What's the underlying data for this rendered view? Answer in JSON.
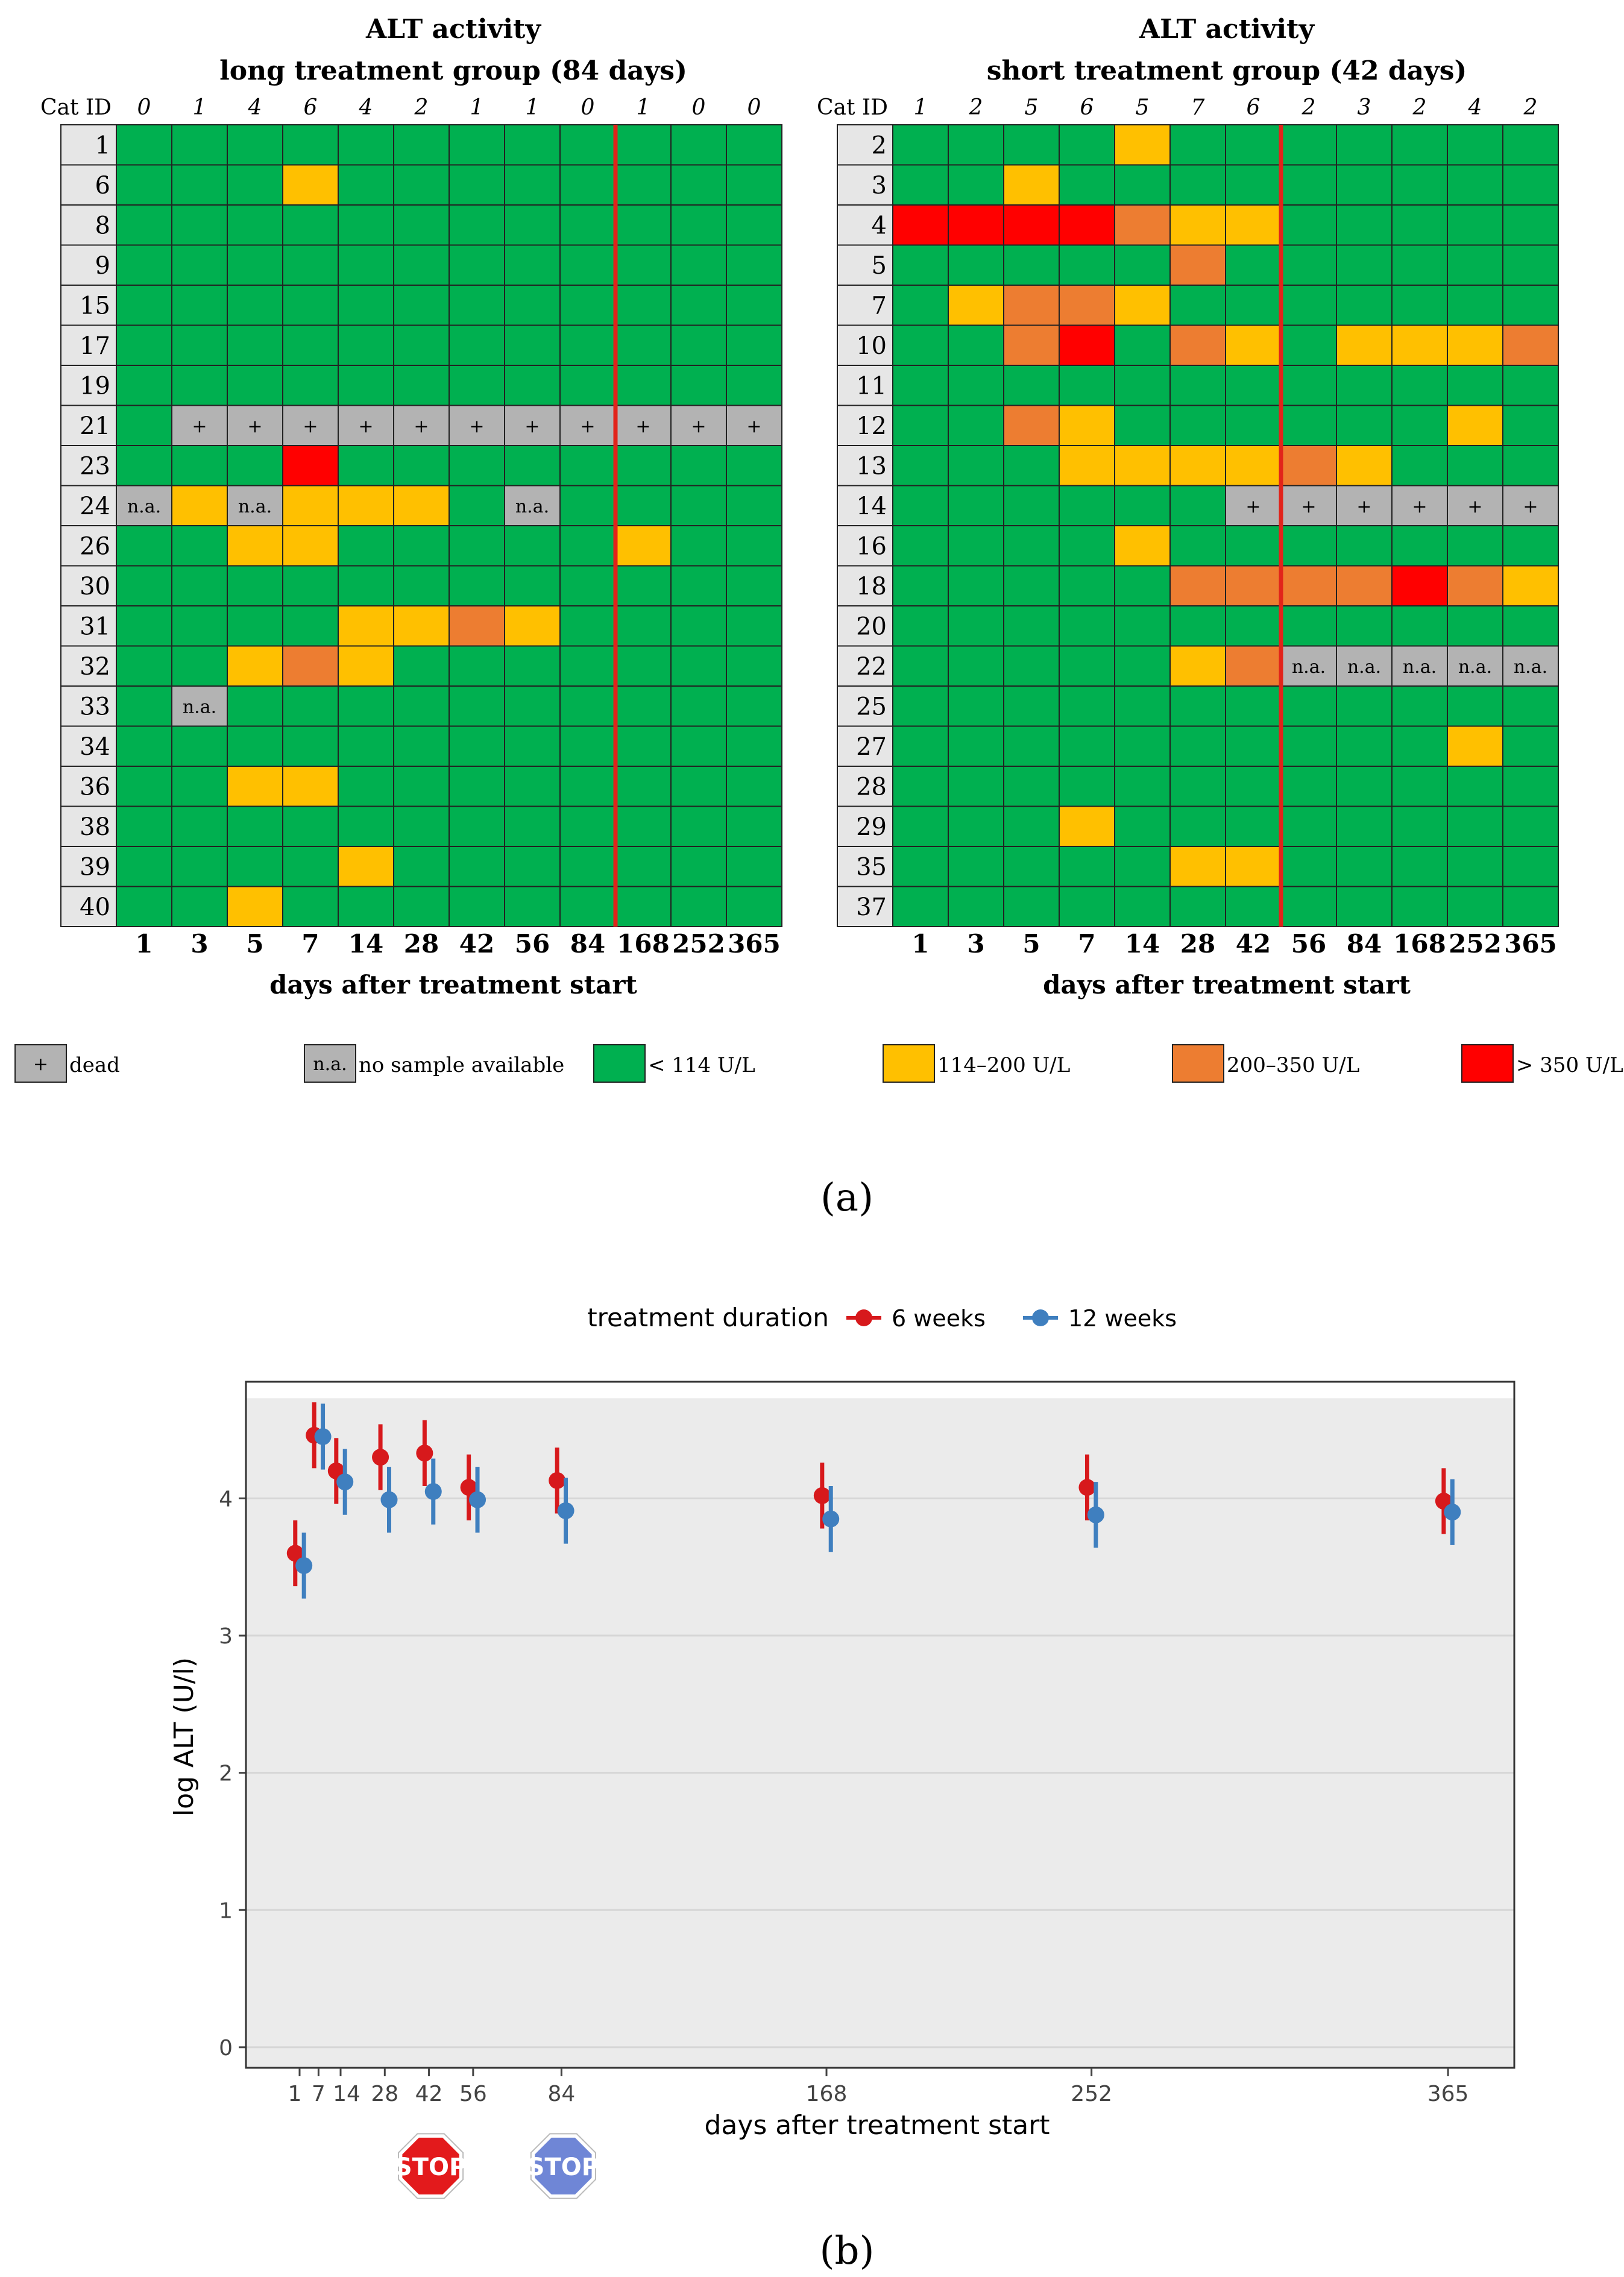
{
  "panel_a": {
    "tag": "(a)",
    "cat_id_label": "Cat ID",
    "xlabel": "days after treatment start",
    "days": [
      "1",
      "3",
      "5",
      "7",
      "14",
      "28",
      "42",
      "56",
      "84",
      "168",
      "252",
      "365"
    ],
    "legend": [
      {
        "code": "D",
        "label": "dead",
        "box_text": "+",
        "color": "#b3b3b3"
      },
      {
        "code": "N",
        "label": "no sample available",
        "box_text": "n.a.",
        "color": "#b3b3b3"
      },
      {
        "code": "G",
        "label": "< 114 U/L",
        "box_text": "",
        "color": "#00b050"
      },
      {
        "code": "Y",
        "label": "114–200 U/L",
        "box_text": "",
        "color": "#ffc000"
      },
      {
        "code": "O",
        "label": "200–350 U/L",
        "box_text": "",
        "color": "#ed7d31"
      },
      {
        "code": "R",
        "label": "> 350 U/L",
        "box_text": "",
        "color": "#ff0000"
      }
    ],
    "cell_text": {
      "dead": "+",
      "na": "n.a."
    },
    "colors": {
      "G": "#00b050",
      "Y": "#ffc000",
      "O": "#ed7d31",
      "R": "#ff0000",
      "D": "#b3b3b3",
      "N": "#b3b3b3",
      "divider": "#e2231a",
      "id_cell": "#e6e6e6"
    }
  },
  "chart_data": [
    {
      "type": "heatmap",
      "title": "ALT activity",
      "subtitle": "long treatment group (84 days)",
      "xlabel": "days after treatment start",
      "columns": [
        "1",
        "3",
        "5",
        "7",
        "14",
        "28",
        "42",
        "56",
        "84",
        "168",
        "252",
        "365"
      ],
      "counts": [
        "0",
        "1",
        "4",
        "6",
        "4",
        "2",
        "1",
        "1",
        "0",
        "1",
        "0",
        "0"
      ],
      "treatment_end_after_column": "84",
      "rows": [
        {
          "id": "1",
          "cells": [
            "G",
            "G",
            "G",
            "G",
            "G",
            "G",
            "G",
            "G",
            "G",
            "G",
            "G",
            "G"
          ]
        },
        {
          "id": "6",
          "cells": [
            "G",
            "G",
            "G",
            "Y",
            "G",
            "G",
            "G",
            "G",
            "G",
            "G",
            "G",
            "G"
          ]
        },
        {
          "id": "8",
          "cells": [
            "G",
            "G",
            "G",
            "G",
            "G",
            "G",
            "G",
            "G",
            "G",
            "G",
            "G",
            "G"
          ]
        },
        {
          "id": "9",
          "cells": [
            "G",
            "G",
            "G",
            "G",
            "G",
            "G",
            "G",
            "G",
            "G",
            "G",
            "G",
            "G"
          ]
        },
        {
          "id": "15",
          "cells": [
            "G",
            "G",
            "G",
            "G",
            "G",
            "G",
            "G",
            "G",
            "G",
            "G",
            "G",
            "G"
          ]
        },
        {
          "id": "17",
          "cells": [
            "G",
            "G",
            "G",
            "G",
            "G",
            "G",
            "G",
            "G",
            "G",
            "G",
            "G",
            "G"
          ]
        },
        {
          "id": "19",
          "cells": [
            "G",
            "G",
            "G",
            "G",
            "G",
            "G",
            "G",
            "G",
            "G",
            "G",
            "G",
            "G"
          ]
        },
        {
          "id": "21",
          "cells": [
            "G",
            "D",
            "D",
            "D",
            "D",
            "D",
            "D",
            "D",
            "D",
            "D",
            "D",
            "D"
          ]
        },
        {
          "id": "23",
          "cells": [
            "G",
            "G",
            "G",
            "R",
            "G",
            "G",
            "G",
            "G",
            "G",
            "G",
            "G",
            "G"
          ]
        },
        {
          "id": "24",
          "cells": [
            "N",
            "Y",
            "N",
            "Y",
            "Y",
            "Y",
            "G",
            "N",
            "G",
            "G",
            "G",
            "G"
          ]
        },
        {
          "id": "26",
          "cells": [
            "G",
            "G",
            "Y",
            "Y",
            "G",
            "G",
            "G",
            "G",
            "G",
            "Y",
            "G",
            "G"
          ]
        },
        {
          "id": "30",
          "cells": [
            "G",
            "G",
            "G",
            "G",
            "G",
            "G",
            "G",
            "G",
            "G",
            "G",
            "G",
            "G"
          ]
        },
        {
          "id": "31",
          "cells": [
            "G",
            "G",
            "G",
            "G",
            "Y",
            "Y",
            "O",
            "Y",
            "G",
            "G",
            "G",
            "G"
          ]
        },
        {
          "id": "32",
          "cells": [
            "G",
            "G",
            "Y",
            "O",
            "Y",
            "G",
            "G",
            "G",
            "G",
            "G",
            "G",
            "G"
          ]
        },
        {
          "id": "33",
          "cells": [
            "G",
            "N",
            "G",
            "G",
            "G",
            "G",
            "G",
            "G",
            "G",
            "G",
            "G",
            "G"
          ]
        },
        {
          "id": "34",
          "cells": [
            "G",
            "G",
            "G",
            "G",
            "G",
            "G",
            "G",
            "G",
            "G",
            "G",
            "G",
            "G"
          ]
        },
        {
          "id": "36",
          "cells": [
            "G",
            "G",
            "Y",
            "Y",
            "G",
            "G",
            "G",
            "G",
            "G",
            "G",
            "G",
            "G"
          ]
        },
        {
          "id": "38",
          "cells": [
            "G",
            "G",
            "G",
            "G",
            "G",
            "G",
            "G",
            "G",
            "G",
            "G",
            "G",
            "G"
          ]
        },
        {
          "id": "39",
          "cells": [
            "G",
            "G",
            "G",
            "G",
            "Y",
            "G",
            "G",
            "G",
            "G",
            "G",
            "G",
            "G"
          ]
        },
        {
          "id": "40",
          "cells": [
            "G",
            "G",
            "Y",
            "G",
            "G",
            "G",
            "G",
            "G",
            "G",
            "G",
            "G",
            "G"
          ]
        }
      ]
    },
    {
      "type": "heatmap",
      "title": "ALT activity",
      "subtitle": "short treatment group (42 days)",
      "xlabel": "days after treatment start",
      "columns": [
        "1",
        "3",
        "5",
        "7",
        "14",
        "28",
        "42",
        "56",
        "84",
        "168",
        "252",
        "365"
      ],
      "counts": [
        "1",
        "2",
        "5",
        "6",
        "5",
        "7",
        "6",
        "2",
        "3",
        "2",
        "4",
        "2"
      ],
      "treatment_end_after_column": "42",
      "rows": [
        {
          "id": "2",
          "cells": [
            "G",
            "G",
            "G",
            "G",
            "Y",
            "G",
            "G",
            "G",
            "G",
            "G",
            "G",
            "G"
          ]
        },
        {
          "id": "3",
          "cells": [
            "G",
            "G",
            "Y",
            "G",
            "G",
            "G",
            "G",
            "G",
            "G",
            "G",
            "G",
            "G"
          ]
        },
        {
          "id": "4",
          "cells": [
            "R",
            "R",
            "R",
            "R",
            "O",
            "Y",
            "Y",
            "G",
            "G",
            "G",
            "G",
            "G"
          ]
        },
        {
          "id": "5",
          "cells": [
            "G",
            "G",
            "G",
            "G",
            "G",
            "O",
            "G",
            "G",
            "G",
            "G",
            "G",
            "G"
          ]
        },
        {
          "id": "7",
          "cells": [
            "G",
            "Y",
            "O",
            "O",
            "Y",
            "G",
            "G",
            "G",
            "G",
            "G",
            "G",
            "G"
          ]
        },
        {
          "id": "10",
          "cells": [
            "G",
            "G",
            "O",
            "R",
            "G",
            "O",
            "Y",
            "G",
            "Y",
            "Y",
            "Y",
            "O"
          ]
        },
        {
          "id": "11",
          "cells": [
            "G",
            "G",
            "G",
            "G",
            "G",
            "G",
            "G",
            "G",
            "G",
            "G",
            "G",
            "G"
          ]
        },
        {
          "id": "12",
          "cells": [
            "G",
            "G",
            "O",
            "Y",
            "G",
            "G",
            "G",
            "G",
            "G",
            "G",
            "Y",
            "G"
          ]
        },
        {
          "id": "13",
          "cells": [
            "G",
            "G",
            "G",
            "Y",
            "Y",
            "Y",
            "Y",
            "O",
            "Y",
            "G",
            "G",
            "G"
          ]
        },
        {
          "id": "14",
          "cells": [
            "G",
            "G",
            "G",
            "G",
            "G",
            "G",
            "D",
            "D",
            "D",
            "D",
            "D",
            "D"
          ]
        },
        {
          "id": "16",
          "cells": [
            "G",
            "G",
            "G",
            "G",
            "Y",
            "G",
            "G",
            "G",
            "G",
            "G",
            "G",
            "G"
          ]
        },
        {
          "id": "18",
          "cells": [
            "G",
            "G",
            "G",
            "G",
            "G",
            "O",
            "O",
            "O",
            "O",
            "R",
            "O",
            "Y"
          ]
        },
        {
          "id": "20",
          "cells": [
            "G",
            "G",
            "G",
            "G",
            "G",
            "G",
            "G",
            "G",
            "G",
            "G",
            "G",
            "G"
          ]
        },
        {
          "id": "22",
          "cells": [
            "G",
            "G",
            "G",
            "G",
            "G",
            "Y",
            "O",
            "N",
            "N",
            "N",
            "N",
            "N"
          ]
        },
        {
          "id": "25",
          "cells": [
            "G",
            "G",
            "G",
            "G",
            "G",
            "G",
            "G",
            "G",
            "G",
            "G",
            "G",
            "G"
          ]
        },
        {
          "id": "27",
          "cells": [
            "G",
            "G",
            "G",
            "G",
            "G",
            "G",
            "G",
            "G",
            "G",
            "G",
            "Y",
            "G"
          ]
        },
        {
          "id": "28",
          "cells": [
            "G",
            "G",
            "G",
            "G",
            "G",
            "G",
            "G",
            "G",
            "G",
            "G",
            "G",
            "G"
          ]
        },
        {
          "id": "29",
          "cells": [
            "G",
            "G",
            "G",
            "Y",
            "G",
            "G",
            "G",
            "G",
            "G",
            "G",
            "G",
            "G"
          ]
        },
        {
          "id": "35",
          "cells": [
            "G",
            "G",
            "G",
            "G",
            "G",
            "Y",
            "Y",
            "G",
            "G",
            "G",
            "G",
            "G"
          ]
        },
        {
          "id": "37",
          "cells": [
            "G",
            "G",
            "G",
            "G",
            "G",
            "G",
            "G",
            "G",
            "G",
            "G",
            "G",
            "G"
          ]
        }
      ]
    },
    {
      "type": "scatter",
      "tag": "(b)",
      "legend_title": "treatment duration",
      "legend_position": "top",
      "xlabel": "days after treatment start",
      "ylabel": "log ALT (U/l)",
      "x_ticks": [
        1,
        7,
        14,
        28,
        42,
        56,
        84,
        168,
        252,
        365
      ],
      "x_tick_labels": [
        "1",
        "7",
        "14",
        "28",
        "42",
        "56",
        "84",
        "168",
        "252",
        "365"
      ],
      "y_ticks": [
        0,
        1,
        2,
        3,
        4
      ],
      "xlim": [
        -16,
        386
      ],
      "ylim": [
        -0.15,
        4.85
      ],
      "shaded_band": [
        -0.15,
        4.73
      ],
      "grid": "horizontal",
      "series": [
        {
          "name": "6 weeks",
          "color": "#d7191c",
          "points": [
            {
              "x": 1,
              "y": 3.6,
              "lo": 3.36,
              "hi": 3.84
            },
            {
              "x": 7,
              "y": 4.46,
              "lo": 4.22,
              "hi": 4.7
            },
            {
              "x": 14,
              "y": 4.2,
              "lo": 3.96,
              "hi": 4.44
            },
            {
              "x": 28,
              "y": 4.3,
              "lo": 4.06,
              "hi": 4.54
            },
            {
              "x": 42,
              "y": 4.33,
              "lo": 4.09,
              "hi": 4.57
            },
            {
              "x": 56,
              "y": 4.08,
              "lo": 3.84,
              "hi": 4.32
            },
            {
              "x": 84,
              "y": 4.13,
              "lo": 3.89,
              "hi": 4.37
            },
            {
              "x": 168,
              "y": 4.02,
              "lo": 3.78,
              "hi": 4.26
            },
            {
              "x": 252,
              "y": 4.08,
              "lo": 3.84,
              "hi": 4.32
            },
            {
              "x": 365,
              "y": 3.98,
              "lo": 3.74,
              "hi": 4.22
            }
          ]
        },
        {
          "name": "12 weeks",
          "color": "#3f7fbf",
          "points": [
            {
              "x": 1,
              "y": 3.51,
              "lo": 3.27,
              "hi": 3.75
            },
            {
              "x": 7,
              "y": 4.45,
              "lo": 4.21,
              "hi": 4.69
            },
            {
              "x": 14,
              "y": 4.12,
              "lo": 3.88,
              "hi": 4.36
            },
            {
              "x": 28,
              "y": 3.99,
              "lo": 3.75,
              "hi": 4.23
            },
            {
              "x": 42,
              "y": 4.05,
              "lo": 3.81,
              "hi": 4.29
            },
            {
              "x": 56,
              "y": 3.99,
              "lo": 3.75,
              "hi": 4.23
            },
            {
              "x": 84,
              "y": 3.91,
              "lo": 3.67,
              "hi": 4.15
            },
            {
              "x": 168,
              "y": 3.85,
              "lo": 3.61,
              "hi": 4.09
            },
            {
              "x": 252,
              "y": 3.88,
              "lo": 3.64,
              "hi": 4.12
            },
            {
              "x": 365,
              "y": 3.9,
              "lo": 3.66,
              "hi": 4.14
            }
          ]
        }
      ],
      "stop_signs": [
        {
          "x": 42,
          "label": "STOP",
          "color": "#e31a1c"
        },
        {
          "x": 84,
          "label": "STOP",
          "color": "#6f86d6"
        }
      ]
    }
  ]
}
